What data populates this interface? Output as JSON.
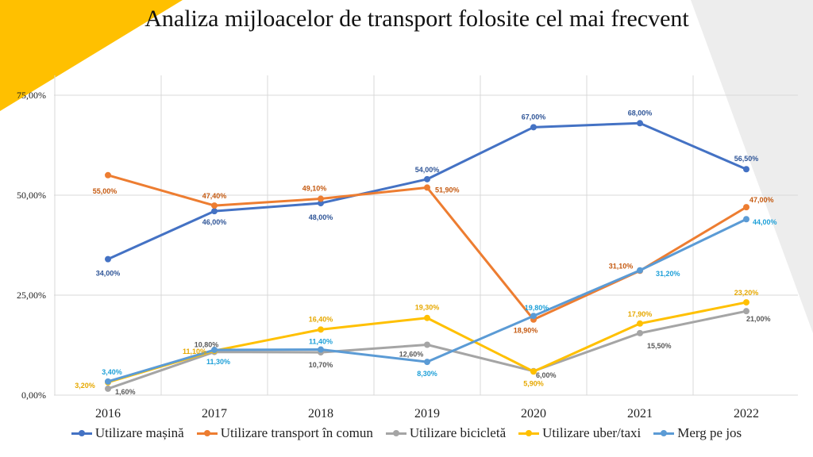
{
  "title": "Analiza mijloacelor de transport folosite cel mai frecvent",
  "colors": {
    "deco_yellow": "#FFC000",
    "deco_gray": "#EDEDED",
    "grid": "#D9D9D9"
  },
  "chart_data": {
    "type": "line",
    "title": "Analiza mijloacelor de transport folosite cel mai frecvent",
    "xlabel": "",
    "ylabel": "",
    "categories": [
      "2016",
      "2017",
      "2018",
      "2019",
      "2020",
      "2021",
      "2022"
    ],
    "ylim": [
      0,
      75
    ],
    "yticks": [
      0,
      25,
      50,
      75
    ],
    "ytick_labels": [
      "0,00%",
      "25,00%",
      "50,00%",
      "75,00%"
    ],
    "grid": true,
    "legend_position": "bottom",
    "series": [
      {
        "name": "Utilizare mașină",
        "color": "#4472C4",
        "label_color": "#2F5597",
        "values": [
          34.0,
          46.0,
          48.0,
          54.0,
          67.0,
          68.0,
          56.5
        ],
        "labels": [
          "34,00%",
          "46,00%",
          "48,00%",
          "54,00%",
          "67,00%",
          "68,00%",
          "56,50%"
        ]
      },
      {
        "name": "Utilizare transport în comun",
        "color": "#ED7D31",
        "label_color": "#C55A11",
        "values": [
          55.0,
          47.4,
          49.1,
          51.9,
          18.9,
          31.1,
          47.0
        ],
        "labels": [
          "55,00%",
          "47,40%",
          "49,10%",
          "51,90%",
          "18,90%",
          "31,10%",
          "47,00%"
        ]
      },
      {
        "name": "Utilizare bicicletă",
        "color": "#A5A5A5",
        "label_color": "#595959",
        "values": [
          1.6,
          10.8,
          10.7,
          12.6,
          6.0,
          15.5,
          21.0
        ],
        "labels": [
          "1,60%",
          "10,80%",
          "10,70%",
          "12,60%",
          "6,00%",
          "15,50%",
          "21,00%"
        ]
      },
      {
        "name": "Utilizare uber/taxi",
        "color": "#FFC000",
        "label_color": "#E6A800",
        "values": [
          3.2,
          11.1,
          16.4,
          19.3,
          5.9,
          17.9,
          23.2
        ],
        "labels": [
          "3,20%",
          "11,10%",
          "16,40%",
          "19,30%",
          "5,90%",
          "17,90%",
          "23,20%"
        ]
      },
      {
        "name": "Merg pe jos",
        "color": "#5B9BD5",
        "label_color": "#1FA0D8",
        "values": [
          3.4,
          11.3,
          11.4,
          8.3,
          19.8,
          31.2,
          44.0
        ],
        "labels": [
          "3,40%",
          "11,30%",
          "11,40%",
          "8,30%",
          "19,80%",
          "31,20%",
          "44,00%"
        ]
      }
    ]
  }
}
